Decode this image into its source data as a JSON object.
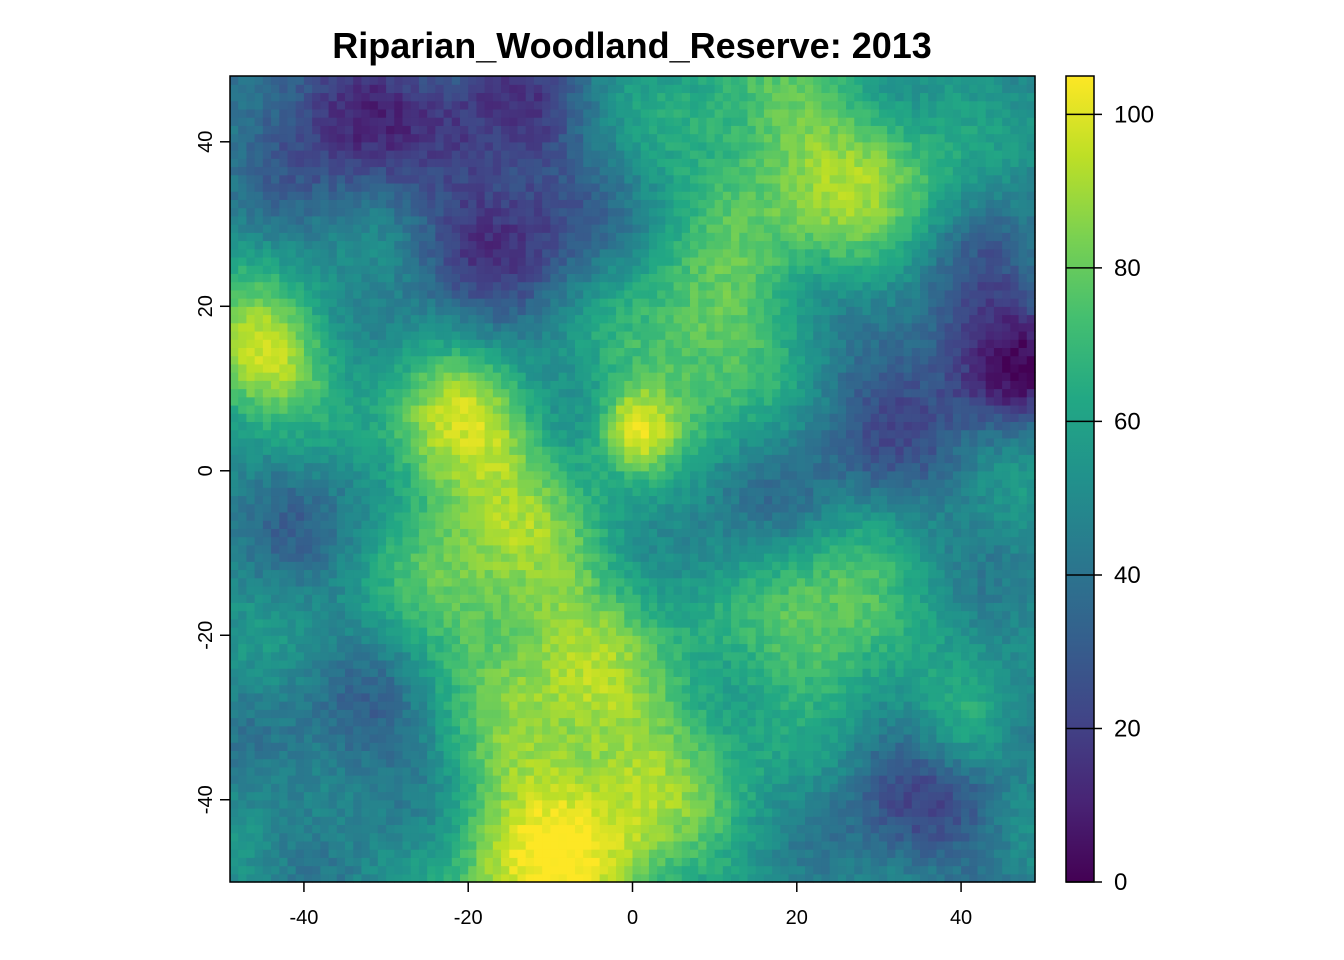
{
  "chart_data": {
    "type": "heatmap",
    "title": "Riparian_Woodland_Reserve: 2013",
    "xlabel": "",
    "ylabel": "",
    "xlim": [
      -49,
      49
    ],
    "ylim": [
      -50,
      48
    ],
    "x_ticks": [
      {
        "value": -40,
        "label": "-40"
      },
      {
        "value": -20,
        "label": "-20"
      },
      {
        "value": 0,
        "label": "0"
      },
      {
        "value": 20,
        "label": "20"
      },
      {
        "value": 40,
        "label": "40"
      }
    ],
    "y_ticks": [
      {
        "value": -40,
        "label": "-40"
      },
      {
        "value": -20,
        "label": "-20"
      },
      {
        "value": 0,
        "label": "0"
      },
      {
        "value": 20,
        "label": "20"
      },
      {
        "value": 40,
        "label": "40"
      }
    ],
    "colorbar": {
      "range": [
        0,
        105
      ],
      "colormap": "viridis",
      "ticks": [
        {
          "value": 0,
          "label": "0"
        },
        {
          "value": 20,
          "label": "20"
        },
        {
          "value": 40,
          "label": "40"
        },
        {
          "value": 60,
          "label": "60"
        },
        {
          "value": 80,
          "label": "80"
        },
        {
          "value": 100,
          "label": "100"
        }
      ]
    },
    "base_value": 50,
    "field_features": [
      {
        "x": -35,
        "y": 44,
        "value": 12,
        "spread": 8
      },
      {
        "x": -15,
        "y": 44,
        "value": 20,
        "spread": 6
      },
      {
        "x": -15,
        "y": 29,
        "value": 17,
        "spread": 8
      },
      {
        "x": -45,
        "y": 14,
        "value": 98,
        "spread": 6
      },
      {
        "x": -21,
        "y": 5,
        "value": 97,
        "spread": 6
      },
      {
        "x": 1,
        "y": 5,
        "value": 100,
        "spread": 3
      },
      {
        "x": -15,
        "y": -12,
        "value": 85,
        "spread": 10
      },
      {
        "x": 8,
        "y": 14,
        "value": 85,
        "spread": 8
      },
      {
        "x": 20,
        "y": 38,
        "value": 86,
        "spread": 10
      },
      {
        "x": 33,
        "y": 30,
        "value": 80,
        "spread": 6
      },
      {
        "x": 46,
        "y": 13,
        "value": 8,
        "spread": 5
      },
      {
        "x": 40,
        "y": 23,
        "value": 20,
        "spread": 7
      },
      {
        "x": 30,
        "y": 6,
        "value": 28,
        "spread": 8
      },
      {
        "x": 25,
        "y": -18,
        "value": 85,
        "spread": 7
      },
      {
        "x": -5,
        "y": -36,
        "value": 92,
        "spread": 13
      },
      {
        "x": -10,
        "y": -47,
        "value": 93,
        "spread": 7
      },
      {
        "x": -30,
        "y": -33,
        "value": 28,
        "spread": 8
      },
      {
        "x": 35,
        "y": -40,
        "value": 25,
        "spread": 8
      },
      {
        "x": 40,
        "y": -32,
        "value": 72,
        "spread": 4
      },
      {
        "x": -40,
        "y": -5,
        "value": 38,
        "spread": 7
      },
      {
        "x": 10,
        "y": -5,
        "value": 42,
        "spread": 8
      }
    ]
  }
}
